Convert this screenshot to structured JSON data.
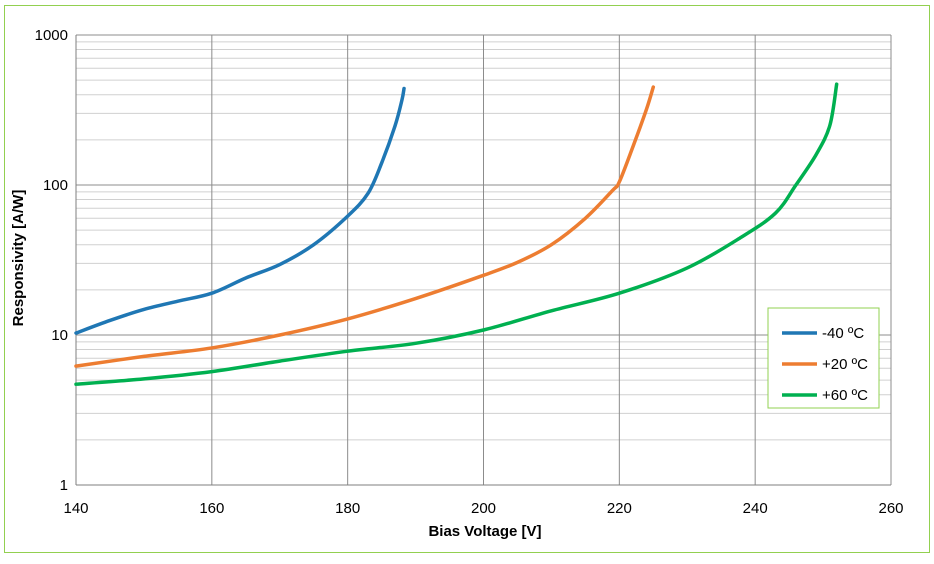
{
  "chart_data": {
    "type": "line",
    "title": "",
    "xlabel": "Bias Voltage [V]",
    "ylabel": "Responsivity [A/W]",
    "xlim": [
      140,
      260
    ],
    "ylim": [
      1,
      1000
    ],
    "y_scale": "log",
    "grid": true,
    "legend_position": "right",
    "x_ticks": [
      "140",
      "160",
      "180",
      "200",
      "220",
      "240",
      "260"
    ],
    "y_ticks": [
      "1",
      "10",
      "100",
      "1000"
    ],
    "series": [
      {
        "name": "-40 ºC",
        "color": "#1f77b4",
        "x": [
          140,
          145,
          150,
          155,
          160,
          165,
          170,
          175,
          180,
          183,
          185,
          187,
          188,
          188.3
        ],
        "y": [
          10.3,
          12.5,
          14.8,
          16.8,
          19,
          24,
          29.5,
          40,
          62,
          88,
          140,
          250,
          370,
          440
        ]
      },
      {
        "name": "+20 ºC",
        "color": "#ed7d31",
        "x": [
          140,
          150,
          160,
          170,
          180,
          190,
          200,
          205,
          210,
          215,
          219,
          220,
          222,
          224,
          225
        ],
        "y": [
          6.2,
          7.2,
          8.2,
          10,
          12.8,
          17.5,
          25,
          30.5,
          40,
          60,
          92,
          105,
          180,
          320,
          450
        ]
      },
      {
        "name": "+60 ºC",
        "color": "#00b050",
        "x": [
          140,
          150,
          160,
          170,
          180,
          190,
          200,
          210,
          220,
          230,
          238,
          243,
          246,
          249,
          251,
          252
        ],
        "y": [
          4.7,
          5.1,
          5.7,
          6.7,
          7.8,
          8.8,
          10.8,
          14.5,
          19,
          28,
          45,
          65,
          100,
          160,
          250,
          470
        ]
      }
    ]
  }
}
